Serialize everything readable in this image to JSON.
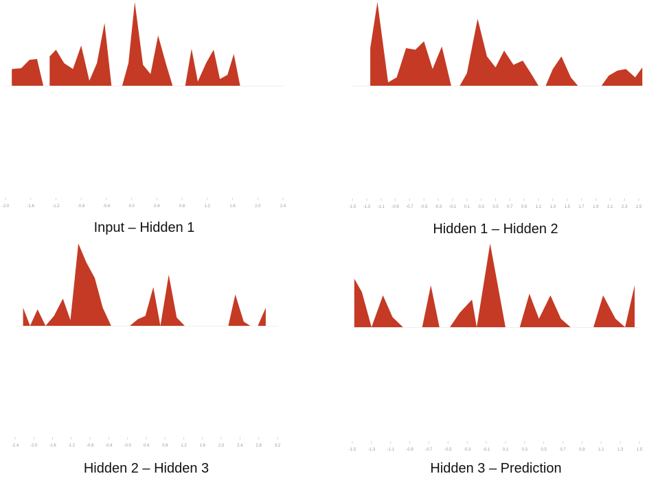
{
  "accent_color": "#c43a24",
  "chart_data": [
    {
      "type": "area",
      "title": "Input – Hidden 1",
      "xlim": [
        -2.0,
        2.4
      ],
      "tick_labels": [
        "-2.0",
        "-1.6",
        "-1.2",
        "-0.8",
        "-0.4",
        "0.0",
        "0.4",
        "0.8",
        "1.2",
        "1.6",
        "2.0",
        "2.4"
      ],
      "segments": [
        [
          [
            -1.9,
            0.2
          ],
          [
            -1.75,
            0.21
          ],
          [
            -1.62,
            0.31
          ],
          [
            -1.5,
            0.32
          ],
          [
            -1.4,
            0.0
          ]
        ],
        [
          [
            -1.3,
            0.35
          ],
          [
            -1.2,
            0.43
          ],
          [
            -1.07,
            0.27
          ],
          [
            -0.93,
            0.2
          ],
          [
            -0.8,
            0.48
          ],
          [
            -0.67,
            0.06
          ],
          [
            -0.55,
            0.27
          ],
          [
            -0.43,
            0.75
          ],
          [
            -0.32,
            0.0
          ]
        ],
        [
          [
            -0.15,
            0.0
          ],
          [
            -0.05,
            0.27
          ],
          [
            0.05,
            1.0
          ],
          [
            0.18,
            0.25
          ],
          [
            0.3,
            0.14
          ],
          [
            0.42,
            0.6
          ],
          [
            0.55,
            0.25
          ],
          [
            0.65,
            0.0
          ]
        ],
        [
          [
            0.85,
            0.0
          ],
          [
            0.95,
            0.44
          ],
          [
            1.05,
            0.05
          ],
          [
            1.18,
            0.27
          ],
          [
            1.3,
            0.43
          ],
          [
            1.4,
            0.08
          ],
          [
            1.52,
            0.13
          ],
          [
            1.62,
            0.38
          ],
          [
            1.72,
            0.0
          ]
        ]
      ]
    },
    {
      "type": "area",
      "title": "Hidden 1 – Hidden 2",
      "xlim": [
        -1.5,
        2.5
      ],
      "tick_labels": [
        "-1.5",
        "-1.3",
        "-1.1",
        "-0.9",
        "-0.7",
        "-0.5",
        "-0.3",
        "-0.1",
        "0.1",
        "0.3",
        "0.5",
        "0.7",
        "0.9",
        "1.1",
        "1.3",
        "1.5",
        "1.7",
        "1.9",
        "2.1",
        "2.3",
        "2.5"
      ],
      "segments": [
        [
          [
            -1.25,
            0.45
          ],
          [
            -1.15,
            1.0
          ],
          [
            -1.0,
            0.04
          ],
          [
            -0.88,
            0.1
          ],
          [
            -0.75,
            0.45
          ],
          [
            -0.62,
            0.43
          ],
          [
            -0.5,
            0.53
          ],
          [
            -0.38,
            0.2
          ],
          [
            -0.25,
            0.47
          ],
          [
            -0.12,
            0.0
          ]
        ],
        [
          [
            0.0,
            0.0
          ],
          [
            0.1,
            0.15
          ],
          [
            0.25,
            0.8
          ],
          [
            0.38,
            0.35
          ],
          [
            0.5,
            0.22
          ],
          [
            0.62,
            0.42
          ],
          [
            0.75,
            0.25
          ],
          [
            0.88,
            0.3
          ],
          [
            1.0,
            0.14
          ],
          [
            1.1,
            0.0
          ]
        ],
        [
          [
            1.2,
            0.0
          ],
          [
            1.3,
            0.2
          ],
          [
            1.42,
            0.35
          ],
          [
            1.55,
            0.1
          ],
          [
            1.65,
            0.0
          ]
        ],
        [
          [
            1.88,
            0.0
          ],
          [
            1.98,
            0.0
          ],
          [
            2.08,
            0.12
          ],
          [
            2.2,
            0.18
          ],
          [
            2.32,
            0.2
          ],
          [
            2.45,
            0.1
          ],
          [
            2.55,
            0.22
          ]
        ]
      ]
    },
    {
      "type": "area",
      "title": "Hidden 2 – Hidden 3",
      "xlim": [
        -2.4,
        3.2
      ],
      "tick_labels": [
        "-2.4",
        "-2.0",
        "-1.6",
        "-1.2",
        "-0.8",
        "-0.4",
        "-0.0",
        "0.4",
        "0.8",
        "1.2",
        "1.6",
        "2.0",
        "2.4",
        "2.8",
        "3.2"
      ],
      "segments": [
        [
          [
            -2.23,
            0.22
          ],
          [
            -2.08,
            0.0
          ],
          [
            -1.92,
            0.2
          ],
          [
            -1.75,
            0.0
          ],
          [
            -1.57,
            0.12
          ],
          [
            -1.38,
            0.33
          ],
          [
            -1.22,
            0.07
          ],
          [
            -1.05,
            1.0
          ],
          [
            -0.88,
            0.77
          ],
          [
            -0.7,
            0.58
          ],
          [
            -0.53,
            0.22
          ],
          [
            -0.35,
            0.0
          ]
        ],
        [
          [
            0.05,
            0.0
          ],
          [
            0.22,
            0.08
          ],
          [
            0.38,
            0.12
          ],
          [
            0.55,
            0.47
          ],
          [
            0.7,
            0.0
          ],
          [
            0.88,
            0.62
          ],
          [
            1.05,
            0.1
          ],
          [
            1.22,
            0.0
          ]
        ],
        [
          [
            2.0,
            0.0
          ],
          [
            2.15,
            0.0
          ],
          [
            2.3,
            0.38
          ],
          [
            2.48,
            0.05
          ],
          [
            2.62,
            0.0
          ],
          [
            2.78,
            0.0
          ],
          [
            2.95,
            0.22
          ]
        ]
      ]
    },
    {
      "type": "area",
      "title": "Hidden 3 – Prediction",
      "xlim": [
        -1.5,
        1.5
      ],
      "tick_labels": [
        "-1.5",
        "-1.3",
        "-1.1",
        "-0.9",
        "-0.7",
        "-0.5",
        "-0.3",
        "-0.1",
        "0.1",
        "0.3",
        "0.5",
        "0.7",
        "0.9",
        "1.1",
        "1.3",
        "1.5"
      ],
      "segments": [
        [
          [
            -1.48,
            0.58
          ],
          [
            -1.4,
            0.42
          ],
          [
            -1.3,
            0.0
          ],
          [
            -1.18,
            0.38
          ],
          [
            -1.08,
            0.12
          ],
          [
            -0.97,
            0.0
          ]
        ],
        [
          [
            -0.77,
            0.0
          ],
          [
            -0.68,
            0.5
          ],
          [
            -0.59,
            0.0
          ]
        ],
        [
          [
            -0.48,
            0.0
          ],
          [
            -0.38,
            0.17
          ],
          [
            -0.25,
            0.33
          ],
          [
            -0.2,
            0.0
          ],
          [
            -0.06,
            1.0
          ],
          [
            0.1,
            0.0
          ]
        ],
        [
          [
            0.25,
            0.0
          ],
          [
            0.35,
            0.4
          ],
          [
            0.45,
            0.1
          ],
          [
            0.57,
            0.38
          ],
          [
            0.68,
            0.1
          ],
          [
            0.78,
            0.0
          ]
        ],
        [
          [
            1.02,
            0.0
          ],
          [
            1.12,
            0.38
          ],
          [
            1.25,
            0.1
          ],
          [
            1.35,
            0.0
          ],
          [
            1.45,
            0.5
          ]
        ]
      ]
    }
  ]
}
